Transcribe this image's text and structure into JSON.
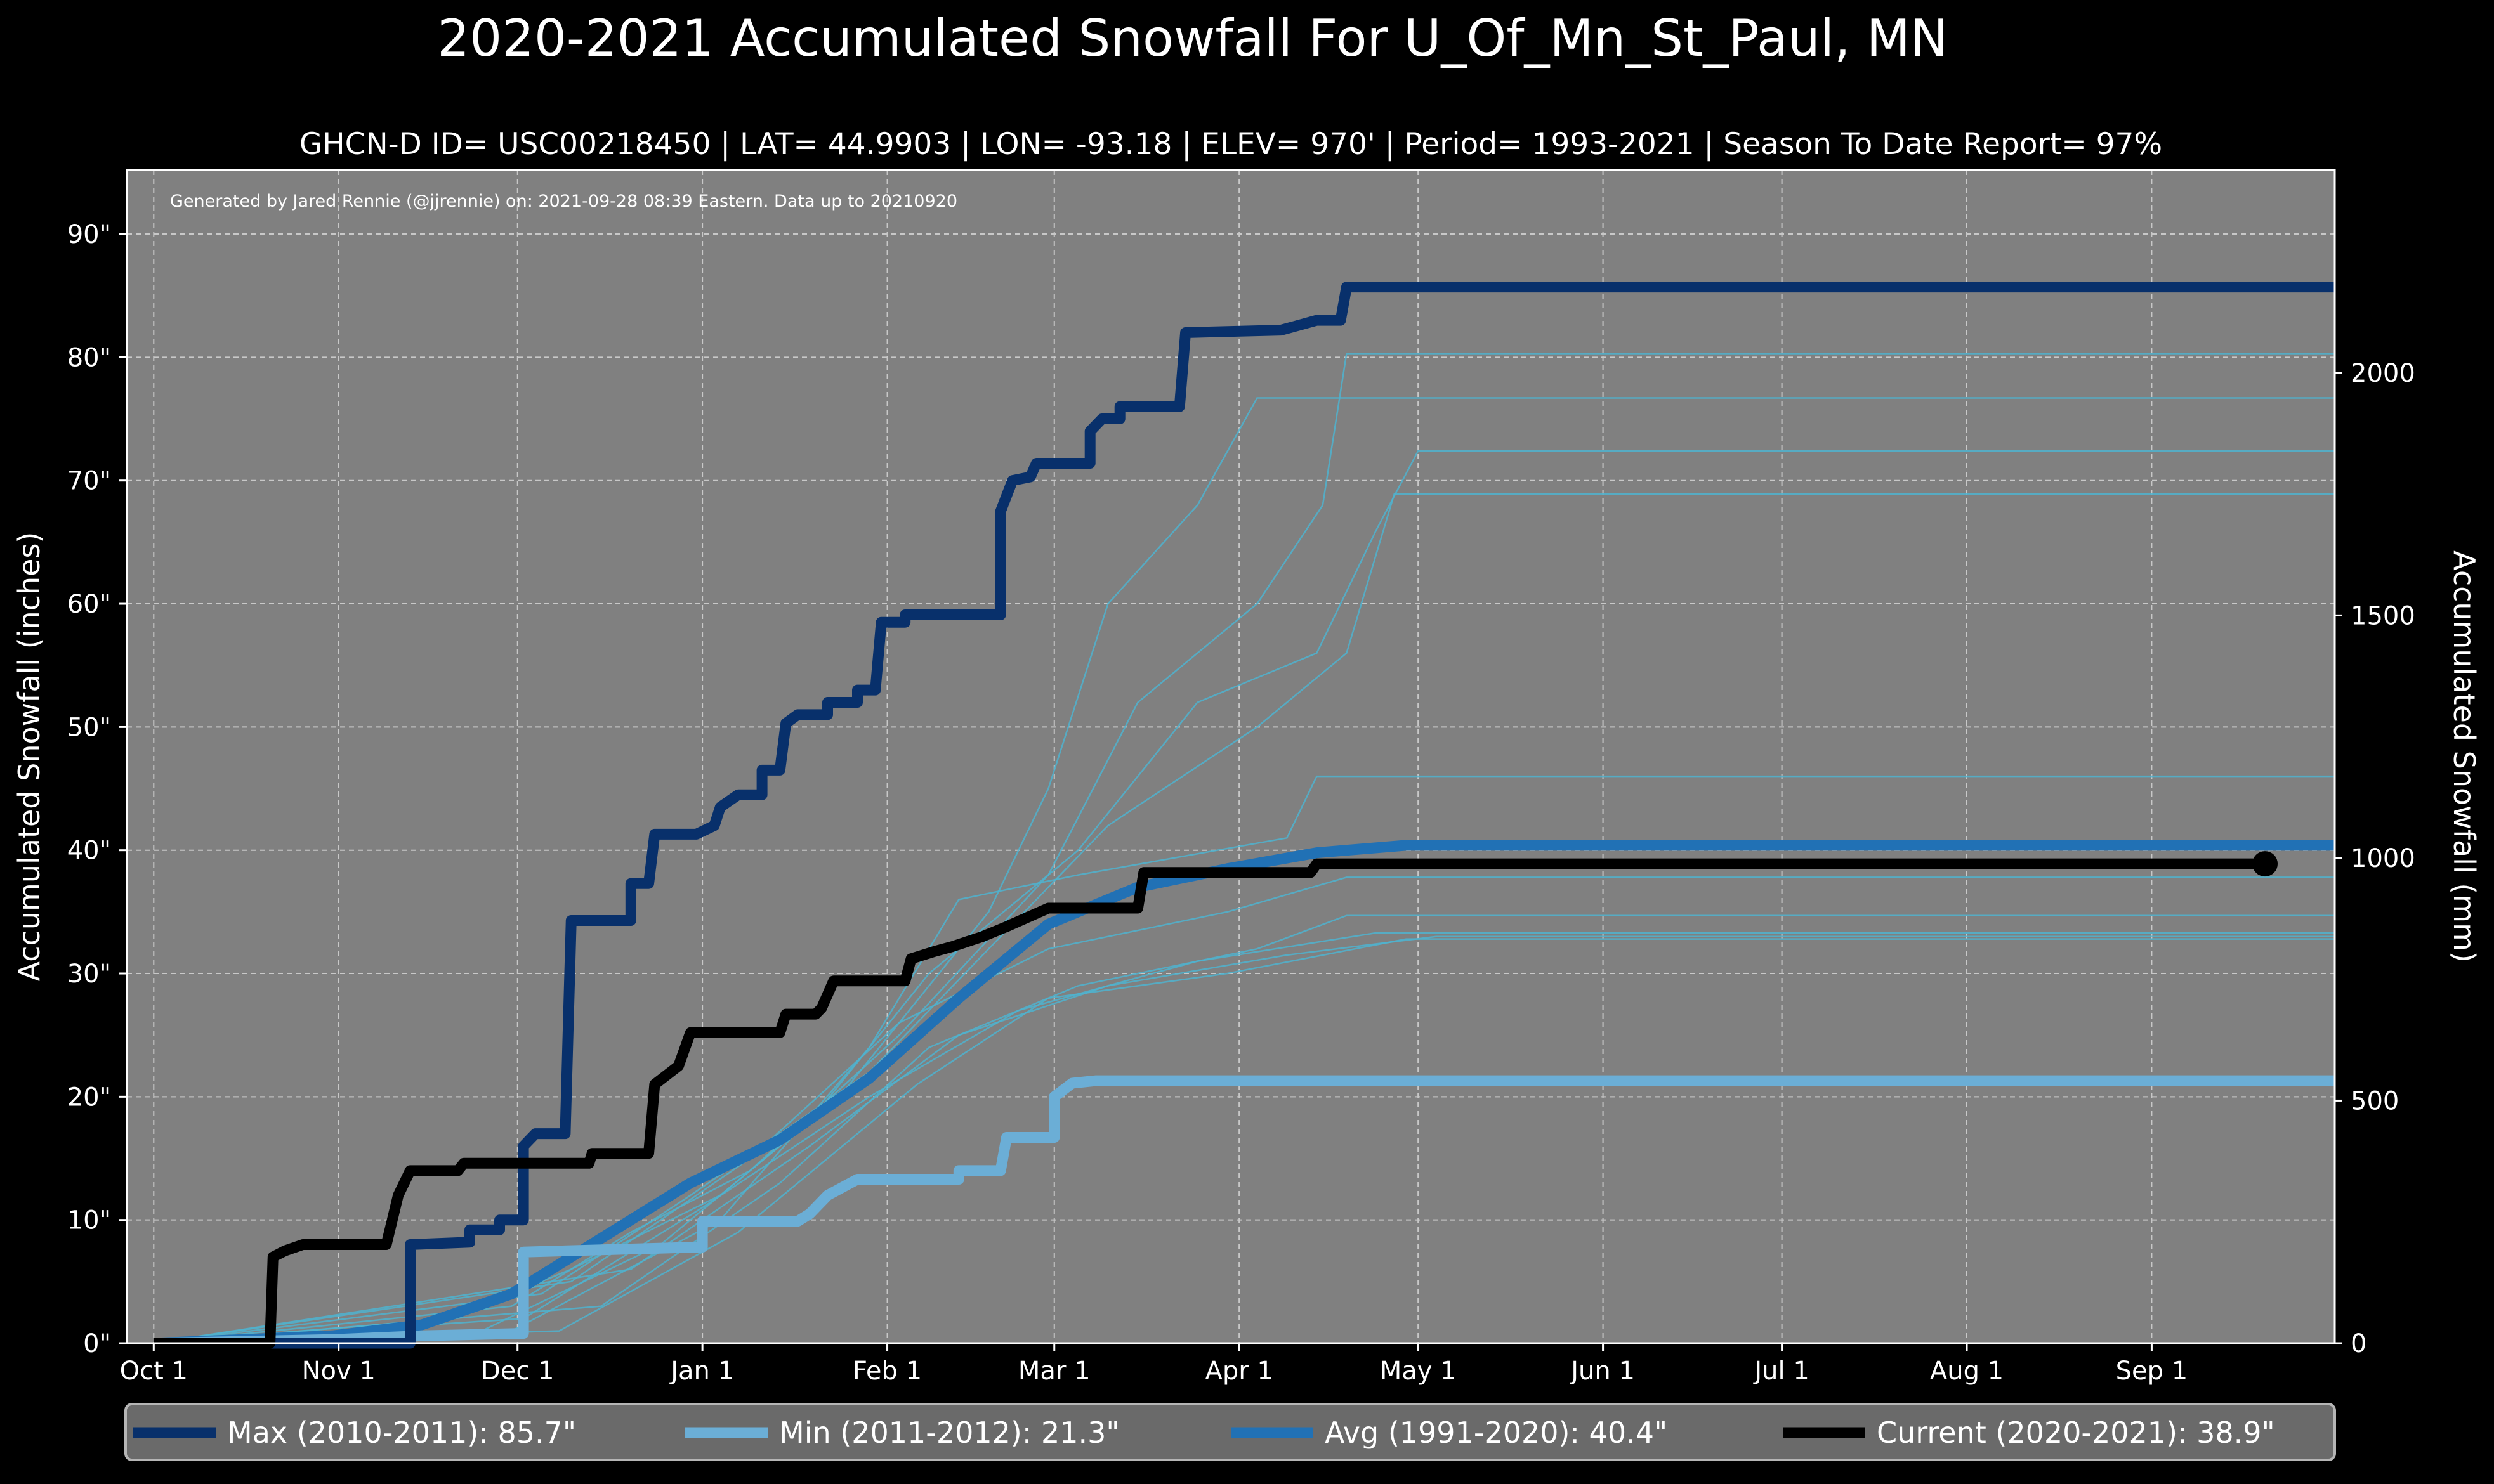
{
  "chart_data": {
    "type": "line",
    "title": "2020-2021 Accumulated Snowfall For U_Of_Mn_St_Paul, MN",
    "subtitle": "GHCN-D ID= USC00218450 | LAT= 44.9903 | LON= -93.18 | ELEV= 970' | Period= 1993-2021 | Season To Date Report= 97%",
    "credit": "Generated by Jared Rennie (@jjrennie) on: 2021-09-28 08:39 Eastern. Data up to 20210920",
    "ylabel": "Accumulated Snowfall (inches)",
    "ylabel_right": "Accumulated Snowfall (mm)",
    "x_unit": "days since Oct 1",
    "xlim": [
      -4.5,
      365.7
    ],
    "ylim": [
      0,
      95.2
    ],
    "ylim_right_mm": [
      0,
      2418
    ],
    "grid": true,
    "x_ticks": [
      {
        "day": 0,
        "label": "Oct 1"
      },
      {
        "day": 31,
        "label": "Nov 1"
      },
      {
        "day": 61,
        "label": "Dec 1"
      },
      {
        "day": 92,
        "label": "Jan 1"
      },
      {
        "day": 123,
        "label": "Feb 1"
      },
      {
        "day": 151,
        "label": "Mar 1"
      },
      {
        "day": 182,
        "label": "Apr 1"
      },
      {
        "day": 212,
        "label": "May 1"
      },
      {
        "day": 243,
        "label": "Jun 1"
      },
      {
        "day": 273,
        "label": "Jul 1"
      },
      {
        "day": 304,
        "label": "Aug 1"
      },
      {
        "day": 335,
        "label": "Sep 1"
      }
    ],
    "y_ticks": [
      {
        "value": 0,
        "label": "0\""
      },
      {
        "value": 10,
        "label": "10\""
      },
      {
        "value": 20,
        "label": "20\""
      },
      {
        "value": 30,
        "label": "30\""
      },
      {
        "value": 40,
        "label": "40\""
      },
      {
        "value": 50,
        "label": "50\""
      },
      {
        "value": 60,
        "label": "60\""
      },
      {
        "value": 70,
        "label": "70\""
      },
      {
        "value": 80,
        "label": "80\""
      },
      {
        "value": 90,
        "label": "90\""
      }
    ],
    "y_ticks_right": [
      {
        "value": 0,
        "label": "0"
      },
      {
        "value": 500,
        "label": "500"
      },
      {
        "value": 1000,
        "label": "1000"
      },
      {
        "value": 1500,
        "label": "1500"
      },
      {
        "value": 2000,
        "label": "2000"
      }
    ],
    "legend_placement": "bottom",
    "series": [
      {
        "name": "Max (2010-2011):   85.7\"",
        "color": "#08306b",
        "step": true,
        "points": [
          [
            0,
            0
          ],
          [
            43,
            0
          ],
          [
            43,
            8
          ],
          [
            53,
            8.2
          ],
          [
            53,
            9.2
          ],
          [
            58,
            9.2
          ],
          [
            58,
            10
          ],
          [
            62,
            10
          ],
          [
            62,
            16
          ],
          [
            64,
            17
          ],
          [
            69,
            17
          ],
          [
            70,
            34.3
          ],
          [
            80,
            34.3
          ],
          [
            80,
            37.3
          ],
          [
            83,
            37.3
          ],
          [
            84,
            41.3
          ],
          [
            91,
            41.3
          ],
          [
            94,
            42
          ],
          [
            95,
            43.5
          ],
          [
            98,
            44.5
          ],
          [
            102,
            44.5
          ],
          [
            102,
            46.5
          ],
          [
            105,
            46.5
          ],
          [
            106,
            50.3
          ],
          [
            108,
            51
          ],
          [
            113,
            51
          ],
          [
            113,
            52
          ],
          [
            118,
            52
          ],
          [
            118,
            53
          ],
          [
            121,
            53
          ],
          [
            122,
            58.5
          ],
          [
            126,
            58.5
          ],
          [
            126,
            59.1
          ],
          [
            142,
            59.1
          ],
          [
            142,
            67.5
          ],
          [
            144,
            70
          ],
          [
            147,
            70.3
          ],
          [
            148,
            71.4
          ],
          [
            157,
            71.4
          ],
          [
            157,
            74
          ],
          [
            159,
            75
          ],
          [
            162,
            75
          ],
          [
            162,
            76
          ],
          [
            172,
            76
          ],
          [
            173,
            82
          ],
          [
            189,
            82.2
          ],
          [
            195,
            83
          ],
          [
            199,
            83
          ],
          [
            200,
            85.7
          ],
          [
            365.7,
            85.7
          ]
        ]
      },
      {
        "name": "Min (2011-2012):   21.3\"",
        "color": "#6baed6",
        "step": true,
        "points": [
          [
            0,
            0
          ],
          [
            30,
            0.3
          ],
          [
            45,
            0.6
          ],
          [
            62,
            0.8
          ],
          [
            62,
            7.4
          ],
          [
            92,
            7.8
          ],
          [
            92,
            9.9
          ],
          [
            108,
            9.9
          ],
          [
            110,
            10.5
          ],
          [
            113,
            12
          ],
          [
            118,
            13.3
          ],
          [
            135,
            13.3
          ],
          [
            135,
            14
          ],
          [
            142,
            14
          ],
          [
            143,
            16.7
          ],
          [
            151,
            16.7
          ],
          [
            151,
            20
          ],
          [
            154,
            21.1
          ],
          [
            158,
            21.3
          ],
          [
            365.7,
            21.3
          ]
        ]
      },
      {
        "name": "Avg (1991-2020):   40.4\"",
        "color": "#2171b5",
        "step": false,
        "points": [
          [
            0,
            0
          ],
          [
            30,
            0.6
          ],
          [
            45,
            1.5
          ],
          [
            60,
            4
          ],
          [
            75,
            8.5
          ],
          [
            90,
            13
          ],
          [
            105,
            16.5
          ],
          [
            120,
            21.5
          ],
          [
            135,
            28
          ],
          [
            150,
            34
          ],
          [
            165,
            37
          ],
          [
            180,
            38.5
          ],
          [
            195,
            39.8
          ],
          [
            210,
            40.4
          ],
          [
            365.7,
            40.4
          ]
        ]
      },
      {
        "name": "Current (2020-2021):   38.9\"",
        "color": "#000000",
        "step": true,
        "end_marker": true,
        "points": [
          [
            0,
            0
          ],
          [
            19.5,
            0
          ],
          [
            20,
            7
          ],
          [
            22,
            7.5
          ],
          [
            25,
            8
          ],
          [
            39,
            8
          ],
          [
            41,
            12
          ],
          [
            43,
            14
          ],
          [
            51,
            14
          ],
          [
            52,
            14.6
          ],
          [
            73,
            14.6
          ],
          [
            73.5,
            15.4
          ],
          [
            83,
            15.4
          ],
          [
            84,
            21
          ],
          [
            88,
            22.5
          ],
          [
            90,
            25.2
          ],
          [
            105,
            25.2
          ],
          [
            106,
            26.7
          ],
          [
            111,
            26.7
          ],
          [
            112,
            27.2
          ],
          [
            114,
            29.4
          ],
          [
            126,
            29.4
          ],
          [
            127,
            31.2
          ],
          [
            131,
            31.8
          ],
          [
            134,
            32.2
          ],
          [
            139,
            33
          ],
          [
            143,
            33.8
          ],
          [
            150,
            35.3
          ],
          [
            165,
            35.3
          ],
          [
            166,
            38.2
          ],
          [
            194,
            38.2
          ],
          [
            195,
            38.9
          ],
          [
            354,
            38.9
          ]
        ]
      }
    ],
    "other_seasons_color": "#4fb3cf",
    "other_seasons": [
      [
        [
          0,
          0
        ],
        [
          50,
          2
        ],
        [
          70,
          6
        ],
        [
          95,
          12
        ],
        [
          115,
          20
        ],
        [
          140,
          35
        ],
        [
          150,
          45
        ],
        [
          160,
          60
        ],
        [
          175,
          68
        ],
        [
          185,
          76.7
        ],
        [
          365.7,
          76.7
        ]
      ],
      [
        [
          0,
          0
        ],
        [
          60,
          3
        ],
        [
          80,
          9
        ],
        [
          100,
          14
        ],
        [
          125,
          25
        ],
        [
          150,
          38
        ],
        [
          165,
          52
        ],
        [
          185,
          60
        ],
        [
          196,
          68
        ],
        [
          200,
          80.3
        ],
        [
          365.7,
          80.3
        ]
      ],
      [
        [
          0,
          0
        ],
        [
          55,
          1
        ],
        [
          85,
          8
        ],
        [
          110,
          18
        ],
        [
          130,
          30
        ],
        [
          155,
          40
        ],
        [
          175,
          52
        ],
        [
          195,
          56
        ],
        [
          205,
          66
        ],
        [
          212,
          72.4
        ],
        [
          365.7,
          72.4
        ]
      ],
      [
        [
          0,
          0
        ],
        [
          65,
          4
        ],
        [
          90,
          12
        ],
        [
          120,
          22
        ],
        [
          140,
          32
        ],
        [
          160,
          42
        ],
        [
          185,
          50
        ],
        [
          200,
          56
        ],
        [
          208,
          68.9
        ],
        [
          365.7,
          68.9
        ]
      ],
      [
        [
          0,
          0
        ],
        [
          60,
          1
        ],
        [
          95,
          10
        ],
        [
          120,
          24
        ],
        [
          135,
          36
        ],
        [
          155,
          38
        ],
        [
          190,
          41
        ],
        [
          195,
          46
        ],
        [
          365.7,
          46
        ]
      ],
      [
        [
          0,
          0
        ],
        [
          70,
          5
        ],
        [
          100,
          15
        ],
        [
          125,
          26
        ],
        [
          150,
          32
        ],
        [
          180,
          35
        ],
        [
          200,
          37.8
        ],
        [
          365.7,
          37.8
        ]
      ],
      [
        [
          0,
          0
        ],
        [
          75,
          3
        ],
        [
          105,
          13
        ],
        [
          130,
          24
        ],
        [
          155,
          29
        ],
        [
          185,
          32
        ],
        [
          200,
          34.7
        ],
        [
          365.7,
          34.7
        ]
      ],
      [
        [
          0,
          0
        ],
        [
          62,
          2
        ],
        [
          92,
          11
        ],
        [
          120,
          20
        ],
        [
          145,
          27
        ],
        [
          175,
          31
        ],
        [
          205,
          33.3
        ],
        [
          365.7,
          33.3
        ]
      ],
      [
        [
          0,
          0
        ],
        [
          80,
          6
        ],
        [
          110,
          16
        ],
        [
          135,
          25
        ],
        [
          160,
          29
        ],
        [
          190,
          31.5
        ],
        [
          215,
          33
        ],
        [
          365.7,
          33
        ]
      ],
      [
        [
          0,
          0
        ],
        [
          68,
          1
        ],
        [
          98,
          9
        ],
        [
          128,
          21
        ],
        [
          150,
          28
        ],
        [
          180,
          30
        ],
        [
          210,
          32.8
        ],
        [
          365.7,
          32.8
        ]
      ]
    ]
  }
}
